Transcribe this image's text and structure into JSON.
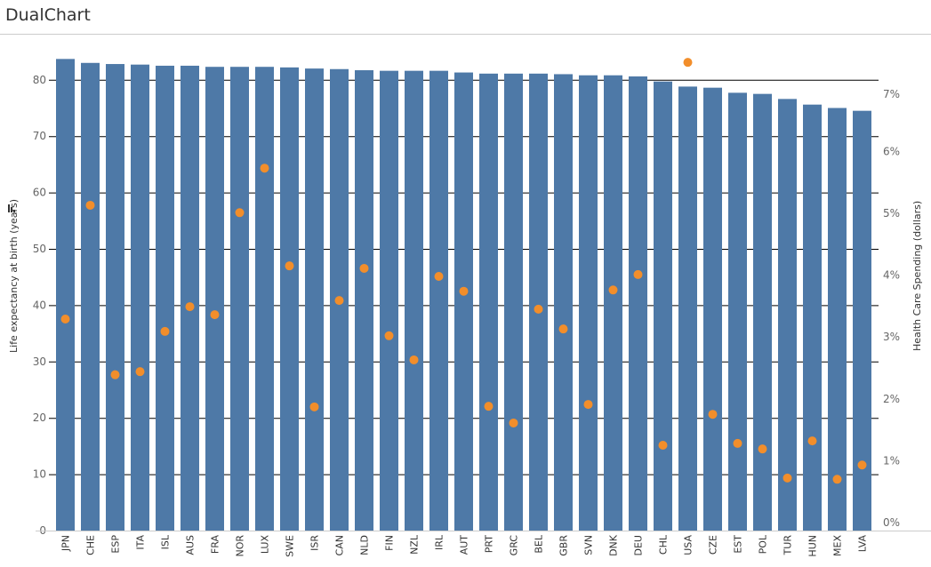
{
  "header": {
    "title": "DualChart"
  },
  "colors": {
    "bar": "#4e79a7",
    "dot": "#f28e2b",
    "grid": "#000000",
    "axis_text": "#666666"
  },
  "chart_data": {
    "type": "bar",
    "title": "DualChart",
    "xlabel": "",
    "ylabel": "Life expectancy at birth (years)",
    "y2label": "Health Care Spending (dollars)",
    "ylim": [
      0,
      83.7
    ],
    "y2lim": [
      0,
      7.6
    ],
    "yticks": [
      0,
      10,
      20,
      30,
      40,
      50,
      60,
      70,
      80
    ],
    "y2ticks": [
      "0%",
      "1%",
      "2%",
      "3%",
      "4%",
      "5%",
      "6%",
      "7%"
    ],
    "grid": true,
    "legend": null,
    "categories": [
      "JPN",
      "CHE",
      "ESP",
      "ITA",
      "ISL",
      "AUS",
      "FRA",
      "NOR",
      "LUX",
      "SWE",
      "ISR",
      "CAN",
      "NLD",
      "FIN",
      "NZL",
      "IRL",
      "AUT",
      "PRT",
      "GRC",
      "BEL",
      "GBR",
      "SVN",
      "DNK",
      "DEU",
      "CHL",
      "USA",
      "CZE",
      "EST",
      "POL",
      "TUR",
      "HUN",
      "MEX",
      "LVA"
    ],
    "series": [
      {
        "name": "Life expectancy at birth (years)",
        "type": "bar",
        "axis": "left",
        "values": [
          83.7,
          83.0,
          82.8,
          82.7,
          82.5,
          82.5,
          82.3,
          82.3,
          82.3,
          82.2,
          82.0,
          81.9,
          81.7,
          81.6,
          81.6,
          81.6,
          81.3,
          81.1,
          81.1,
          81.1,
          81.0,
          80.8,
          80.8,
          80.6,
          79.7,
          78.8,
          78.6,
          77.7,
          77.5,
          76.6,
          75.6,
          75.0,
          74.5
        ]
      },
      {
        "name": "Health Care Spending (dollars)",
        "type": "scatter",
        "axis": "right",
        "values": [
          3.29,
          5.13,
          2.39,
          2.44,
          3.09,
          3.49,
          3.36,
          5.01,
          5.73,
          4.15,
          1.87,
          3.59,
          4.11,
          3.02,
          2.63,
          3.98,
          3.74,
          1.88,
          1.61,
          3.45,
          3.13,
          1.91,
          3.76,
          4.01,
          1.25,
          7.44,
          1.75,
          1.28,
          1.19,
          0.72,
          1.32,
          0.7,
          0.93
        ]
      }
    ]
  }
}
